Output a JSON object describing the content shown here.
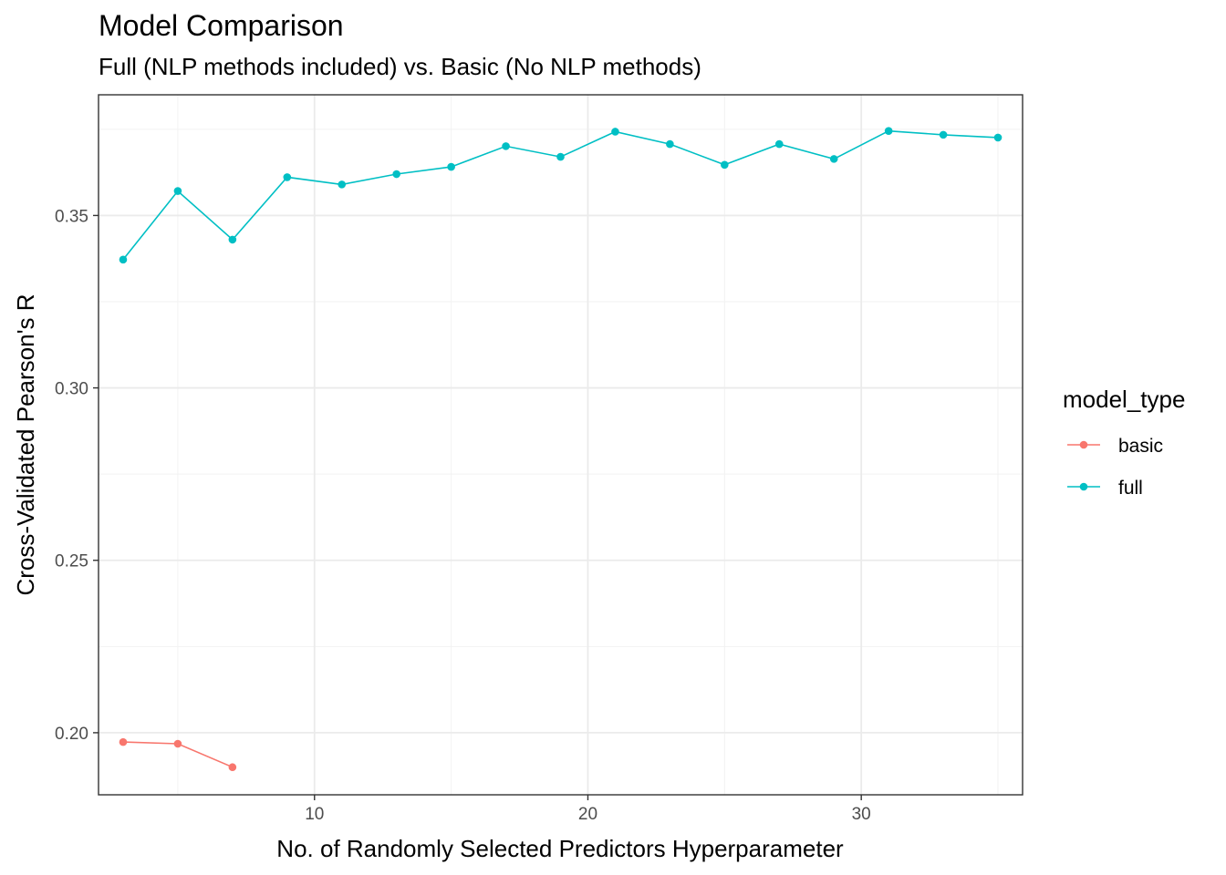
{
  "chart_data": {
    "type": "line",
    "title": "Model Comparison",
    "subtitle": "Full (NLP methods included) vs. Basic (No NLP methods)",
    "xlabel": "No. of Randomly Selected Predictors Hyperparameter",
    "ylabel": "Cross-Validated Pearson's R",
    "xlim": [
      2.1,
      35.9
    ],
    "ylim": [
      0.182,
      0.385
    ],
    "x_ticks": [
      10,
      20,
      30
    ],
    "x_tick_labels": [
      "10",
      "20",
      "30"
    ],
    "y_ticks": [
      0.2,
      0.25,
      0.3,
      0.35
    ],
    "y_tick_labels": [
      "0.20",
      "0.25",
      "0.30",
      "0.35"
    ],
    "grid": true,
    "legend": {
      "title": "model_type",
      "position": "right"
    },
    "series": [
      {
        "name": "basic",
        "color": "#F8766D",
        "x": [
          3,
          5,
          7
        ],
        "y": [
          0.1973,
          0.1968,
          0.19
        ]
      },
      {
        "name": "full",
        "color": "#00BFC4",
        "x": [
          3,
          5,
          7,
          9,
          11,
          13,
          15,
          17,
          19,
          21,
          23,
          25,
          27,
          29,
          31,
          33,
          35
        ],
        "y": [
          0.3372,
          0.3571,
          0.343,
          0.3611,
          0.359,
          0.362,
          0.3641,
          0.3701,
          0.367,
          0.3743,
          0.3707,
          0.3647,
          0.3707,
          0.3664,
          0.3745,
          0.3734,
          0.3726
        ]
      }
    ]
  }
}
